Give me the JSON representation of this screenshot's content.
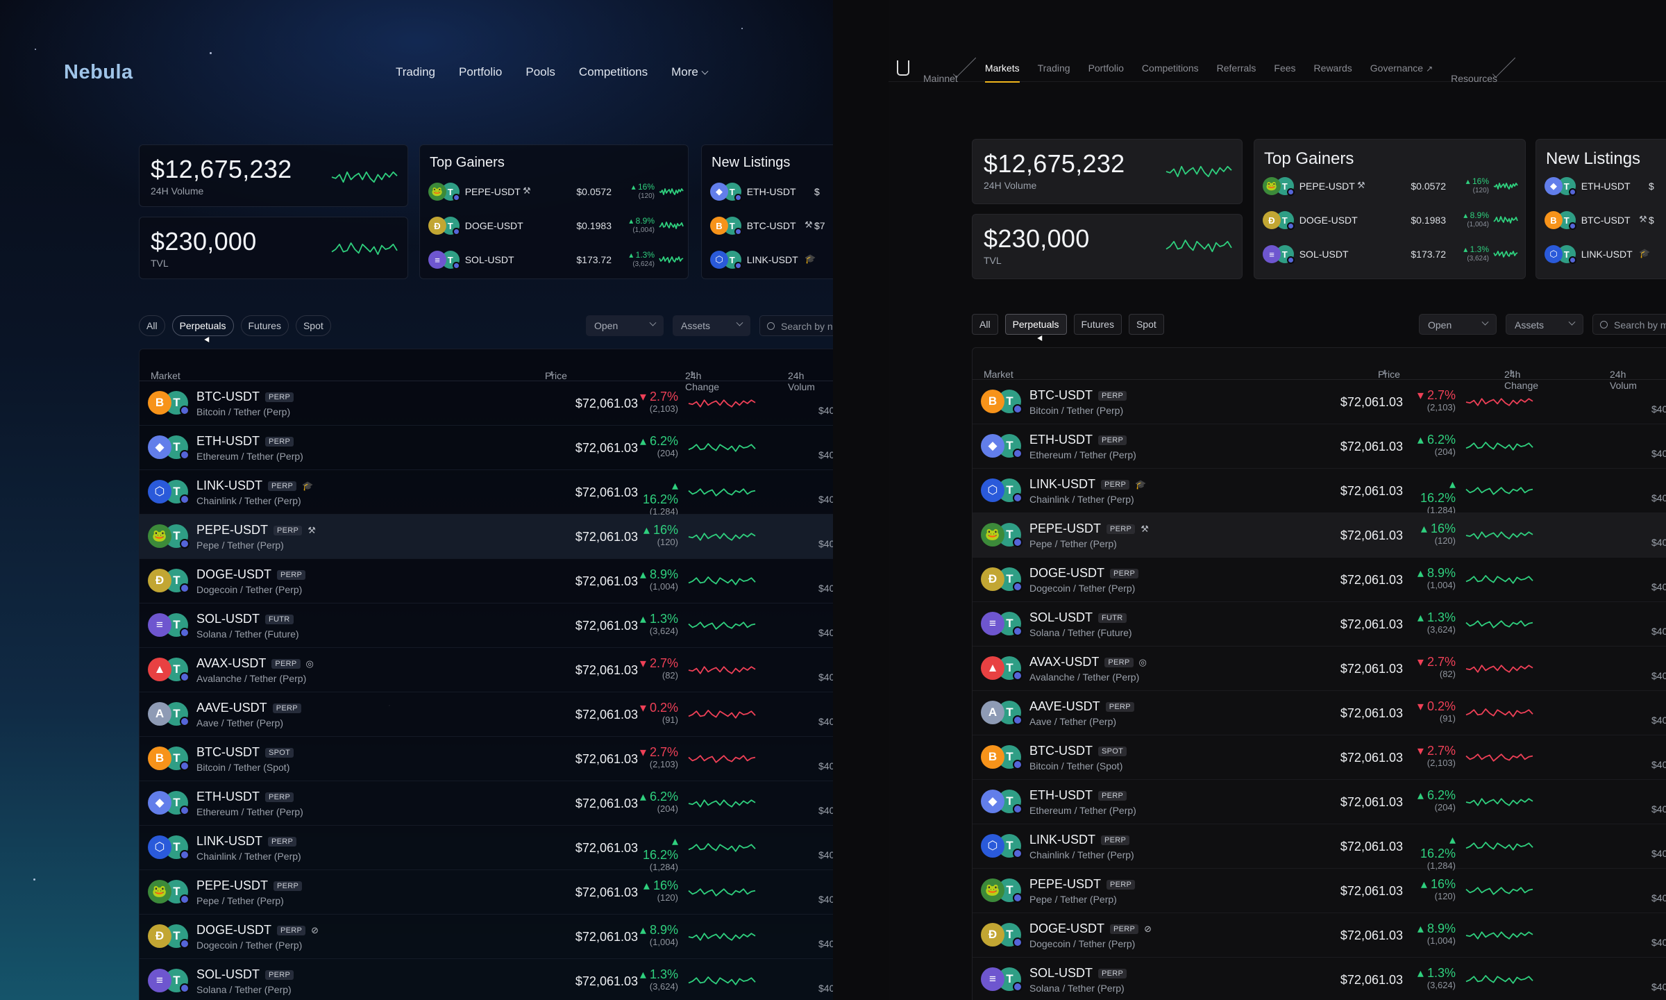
{
  "left": {
    "brand": "Nebula",
    "nav": [
      "Trading",
      "Portfolio",
      "Pools",
      "Competitions",
      "More"
    ]
  },
  "right": {
    "nav": [
      "Mainnet",
      "Markets",
      "Trading",
      "Portfolio",
      "Competitions",
      "Referrals",
      "Fees",
      "Rewards",
      "Governance",
      "Resources"
    ],
    "nav_active": "Markets",
    "nav_external_glyph": "↗"
  },
  "stats": {
    "volume_value": "$12,675,232",
    "volume_label": "24H Volume",
    "tvl_value": "$230,000",
    "tvl_label": "TVL"
  },
  "top_gainers": {
    "title": "Top Gainers",
    "items": [
      {
        "symbol": "PEPE-USDT",
        "price": "$0.0572",
        "change": "16%",
        "count": "(120)",
        "base": "pepe",
        "tag_icon": "hammer-icon"
      },
      {
        "symbol": "DOGE-USDT",
        "price": "$0.1983",
        "change": "8.9%",
        "count": "(1,004)",
        "base": "doge",
        "tag_icon": ""
      },
      {
        "symbol": "SOL-USDT",
        "price": "$173.72",
        "change": "1.3%",
        "count": "(3,624)",
        "base": "sol",
        "tag_icon": ""
      }
    ]
  },
  "new_listings": {
    "title": "New Listings",
    "items": [
      {
        "symbol": "ETH-USDT",
        "base": "eth",
        "tag_icon": "",
        "price_left": "$",
        "price_right": "$"
      },
      {
        "symbol": "BTC-USDT",
        "base": "btc",
        "tag_icon": "hammer-icon",
        "price_left": "$7",
        "price_right": "$"
      },
      {
        "symbol": "LINK-USDT",
        "base": "link",
        "tag_icon": "cap-icon",
        "price_left": "",
        "price_right": ""
      }
    ]
  },
  "filters": {
    "pills": [
      "All",
      "Perpetuals",
      "Futures",
      "Spot"
    ],
    "active": "Perpetuals",
    "status_select": "Open",
    "asset_select": "Assets",
    "search_placeholder_left": "Search by n",
    "search_placeholder_right": "Search by m"
  },
  "table": {
    "headers": {
      "market": "Market",
      "price": "Price",
      "change": "24h Change",
      "volume": "24h Volum"
    },
    "sort_glyph": "⬍",
    "volume_text": "$40",
    "rows": [
      {
        "symbol": "BTC-USDT",
        "badge": "PERP",
        "name": "Bitcoin / Tether (Perp)",
        "price": "$72,061.03",
        "change": "2.7%",
        "count": "(2,103)",
        "dir": "down",
        "base": "btc",
        "icon": ""
      },
      {
        "symbol": "ETH-USDT",
        "badge": "PERP",
        "name": "Ethereum / Tether (Perp)",
        "price": "$72,061.03",
        "change": "6.2%",
        "count": "(204)",
        "dir": "up",
        "base": "eth",
        "icon": ""
      },
      {
        "symbol": "LINK-USDT",
        "badge": "PERP",
        "name": "Chainlink / Tether (Perp)",
        "price": "$72,061.03",
        "change": "16.2%",
        "count": "(1,284)",
        "dir": "up",
        "base": "link",
        "icon": "cap-icon"
      },
      {
        "symbol": "PEPE-USDT",
        "badge": "PERP",
        "name": "Pepe / Tether (Perp)",
        "price": "$72,061.03",
        "change": "16%",
        "count": "(120)",
        "dir": "up",
        "base": "pepe",
        "icon": "hammer-icon"
      },
      {
        "symbol": "DOGE-USDT",
        "badge": "PERP",
        "name": "Dogecoin / Tether (Perp)",
        "price": "$72,061.03",
        "change": "8.9%",
        "count": "(1,004)",
        "dir": "up",
        "base": "doge",
        "icon": ""
      },
      {
        "symbol": "SOL-USDT",
        "badge": "FUTR",
        "name": "Solana / Tether (Future)",
        "price": "$72,061.03",
        "change": "1.3%",
        "count": "(3,624)",
        "dir": "up",
        "base": "sol",
        "icon": ""
      },
      {
        "symbol": "AVAX-USDT",
        "badge": "PERP",
        "name": "Avalanche / Tether (Perp)",
        "price": "$72,061.03",
        "change": "2.7%",
        "count": "(82)",
        "dir": "down",
        "base": "avax",
        "icon": "target-icon"
      },
      {
        "symbol": "AAVE-USDT",
        "badge": "PERP",
        "name": "Aave / Tether (Perp)",
        "price": "$72,061.03",
        "change": "0.2%",
        "count": "(91)",
        "dir": "down",
        "base": "aave",
        "icon": ""
      },
      {
        "symbol": "BTC-USDT",
        "badge": "SPOT",
        "name": "Bitcoin / Tether (Spot)",
        "price": "$72,061.03",
        "change": "2.7%",
        "count": "(2,103)",
        "dir": "down",
        "base": "btc",
        "icon": ""
      },
      {
        "symbol": "ETH-USDT",
        "badge": "PERP",
        "name": "Ethereum / Tether (Perp)",
        "price": "$72,061.03",
        "change": "6.2%",
        "count": "(204)",
        "dir": "up",
        "base": "eth",
        "icon": ""
      },
      {
        "symbol": "LINK-USDT",
        "badge": "PERP",
        "name": "Chainlink / Tether (Perp)",
        "price": "$72,061.03",
        "change": "16.2%",
        "count": "(1,284)",
        "dir": "up",
        "base": "link",
        "icon": ""
      },
      {
        "symbol": "PEPE-USDT",
        "badge": "PERP",
        "name": "Pepe / Tether (Perp)",
        "price": "$72,061.03",
        "change": "16%",
        "count": "(120)",
        "dir": "up",
        "base": "pepe",
        "icon": ""
      },
      {
        "symbol": "DOGE-USDT",
        "badge": "PERP",
        "name": "Dogecoin / Tether (Perp)",
        "price": "$72,061.03",
        "change": "8.9%",
        "count": "(1,004)",
        "dir": "up",
        "base": "doge",
        "icon": "blocked-icon"
      },
      {
        "symbol": "SOL-USDT",
        "badge": "PERP",
        "name": "Solana / Tether (Perp)",
        "price": "$72,061.03",
        "change": "1.3%",
        "count": "(3,624)",
        "dir": "up",
        "base": "sol",
        "icon": ""
      }
    ]
  },
  "colors": {
    "up": "#2fd07e",
    "down": "#ef4057",
    "accent": "#f0b51c",
    "btc": "#f7931a",
    "eth": "#627eea",
    "link": "#2a5ada",
    "pepe": "#3c8a3a",
    "doge": "#c2a633",
    "sol": "#6e56cf",
    "avax": "#e84142",
    "aave": "#8e9bb5",
    "usdt": "#2f9e85"
  },
  "coin_glyphs": {
    "btc": "B",
    "eth": "◆",
    "link": "⬡",
    "pepe": "🐸",
    "doge": "Ð",
    "sol": "≡",
    "avax": "▲",
    "aave": "A",
    "usdt": "T"
  },
  "icon_glyphs": {
    "hammer-icon": "⚒",
    "cap-icon": "🎓",
    "target-icon": "◎",
    "blocked-icon": "⊘"
  },
  "change_arrows": {
    "up": "▴",
    "down": "▾"
  }
}
